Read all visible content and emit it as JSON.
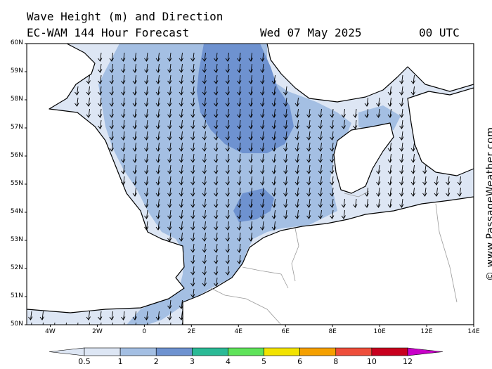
{
  "header": {
    "title": "Wave Height (m) and Direction",
    "model": "EC-WAM 144 Hour Forecast",
    "date": "Wed 07 May 2025",
    "time": "00 UTC"
  },
  "watermark": "© www.PassageWeather.com",
  "map": {
    "lat_labels": [
      "60N",
      "59N",
      "58N",
      "57N",
      "56N",
      "55N",
      "54N",
      "53N",
      "52N",
      "51N",
      "50N"
    ],
    "lat_values": [
      60,
      59,
      58,
      57,
      56,
      55,
      54,
      53,
      52,
      51,
      50
    ],
    "lon_labels": [
      "4W",
      "2W",
      "0",
      "2E",
      "4E",
      "6E",
      "8E",
      "10E",
      "12E",
      "14E"
    ],
    "lon_values": [
      -4,
      -2,
      0,
      2,
      4,
      6,
      8,
      10,
      12,
      14
    ],
    "lon_range": [
      -5,
      14
    ],
    "lat_range": [
      50,
      60
    ],
    "land_color": "#ffffff",
    "sea_default_color": "#dde6f4",
    "wave_direction": "north to south (arrows pointing south)"
  },
  "colorbar": {
    "labels": [
      "0.5",
      "1",
      "2",
      "3",
      "4",
      "5",
      "6",
      "8",
      "10",
      "12"
    ],
    "colors": [
      "#dde6f4",
      "#a4bfe3",
      "#6e92d0",
      "#2bba96",
      "#5fe35a",
      "#f2e300",
      "#f5a000",
      "#ee4e3b",
      "#c8001e",
      "#c800c8"
    ]
  }
}
